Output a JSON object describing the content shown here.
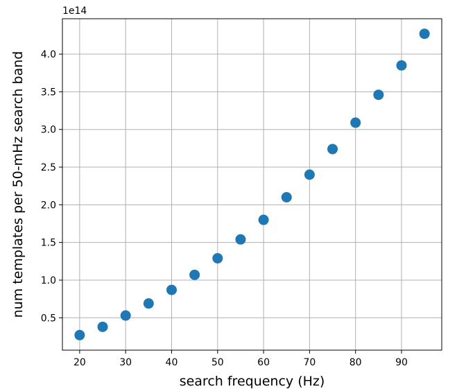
{
  "chart_data": {
    "type": "scatter",
    "xlabel": "search frequency (Hz)",
    "ylabel": "num templates per 50-mHz search band",
    "y_offset_label": "1e14",
    "x": [
      20,
      25,
      30,
      35,
      40,
      45,
      50,
      55,
      60,
      65,
      70,
      75,
      80,
      85,
      90,
      95
    ],
    "y": [
      0.27,
      0.38,
      0.53,
      0.69,
      0.87,
      1.07,
      1.29,
      1.54,
      1.8,
      2.1,
      2.4,
      2.74,
      3.09,
      3.46,
      3.85,
      4.27
    ],
    "y_unit_multiplier": 100000000000000.0,
    "xlim": [
      16.25,
      98.75
    ],
    "ylim": [
      0.07,
      4.47
    ],
    "x_ticks": [
      20,
      30,
      40,
      50,
      60,
      70,
      80,
      90
    ],
    "x_tick_labels": [
      "20",
      "30",
      "40",
      "50",
      "60",
      "70",
      "80",
      "90"
    ],
    "y_ticks": [
      0.5,
      1.0,
      1.5,
      2.0,
      2.5,
      3.0,
      3.5,
      4.0
    ],
    "y_tick_labels": [
      "0.5",
      "1.0",
      "1.5",
      "2.0",
      "2.5",
      "3.0",
      "3.5",
      "4.0"
    ],
    "grid": true,
    "marker_color": "#1f77b4"
  }
}
